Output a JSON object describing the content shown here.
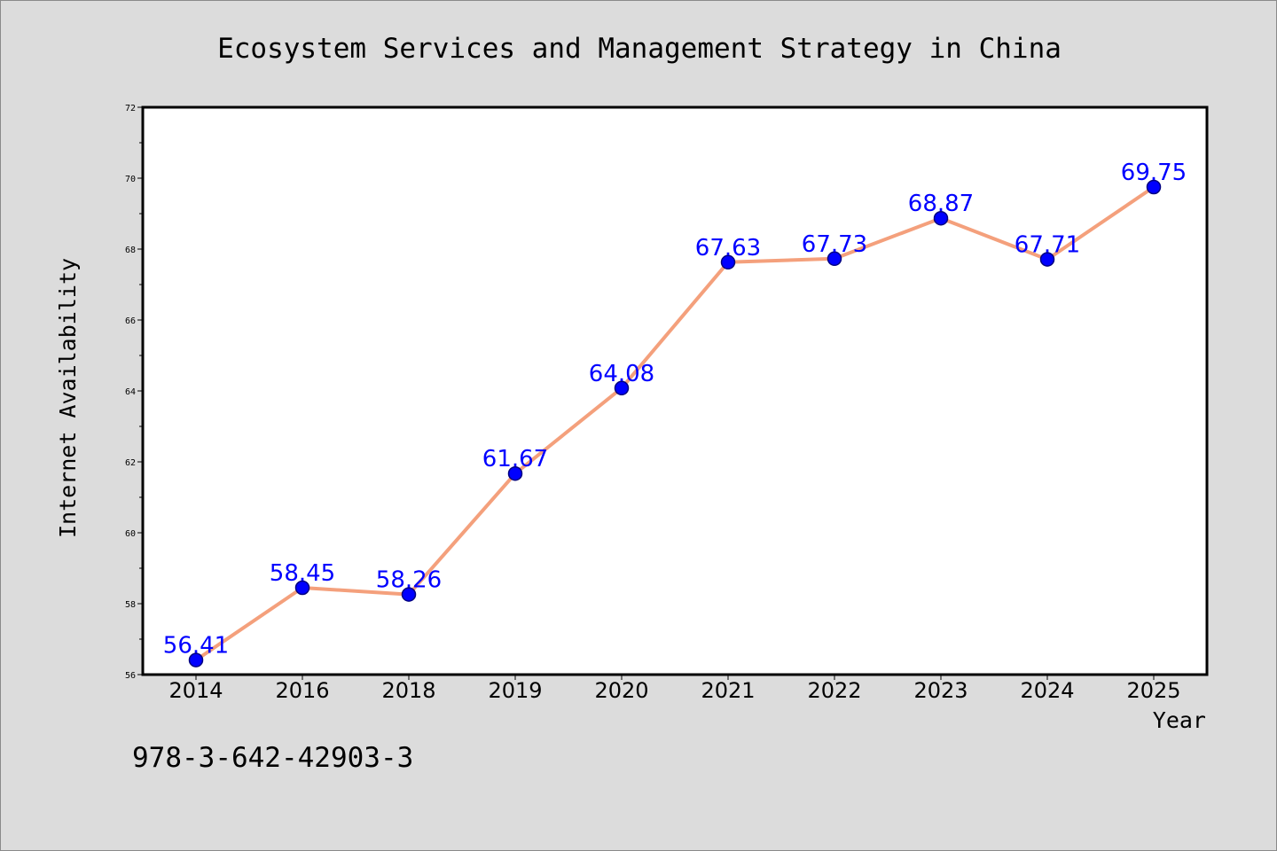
{
  "chart_data": {
    "type": "line",
    "title": "Ecosystem Services and Management Strategy in China",
    "xlabel": "Year",
    "ylabel": "Internet Availability",
    "categories": [
      "2014",
      "2016",
      "2018",
      "2019",
      "2020",
      "2021",
      "2022",
      "2023",
      "2024",
      "2025"
    ],
    "series": [
      {
        "values": [
          56.41,
          58.45,
          58.26,
          61.67,
          64.08,
          67.63,
          67.73,
          68.87,
          67.71,
          69.75
        ],
        "data_labels": [
          "56.41",
          "58.45",
          "58.26",
          "61.67",
          "64.08",
          "67.63",
          "67.73",
          "68.87",
          "67.71",
          "69.75"
        ]
      }
    ],
    "ylim": [
      56,
      72
    ],
    "yticks": [
      "56",
      "58",
      "60",
      "62",
      "64",
      "66",
      "68",
      "70",
      "72"
    ],
    "grid": false,
    "legend": "none",
    "colors": {
      "line": "#f4a07c",
      "marker": "#0000ff",
      "marker_edge": "#000080",
      "data_label": "#0000ff",
      "plot_background": "#ffffff",
      "figure_background": "#dcdcdc"
    }
  },
  "annotation": {
    "text": "978-3-642-42903-3"
  }
}
